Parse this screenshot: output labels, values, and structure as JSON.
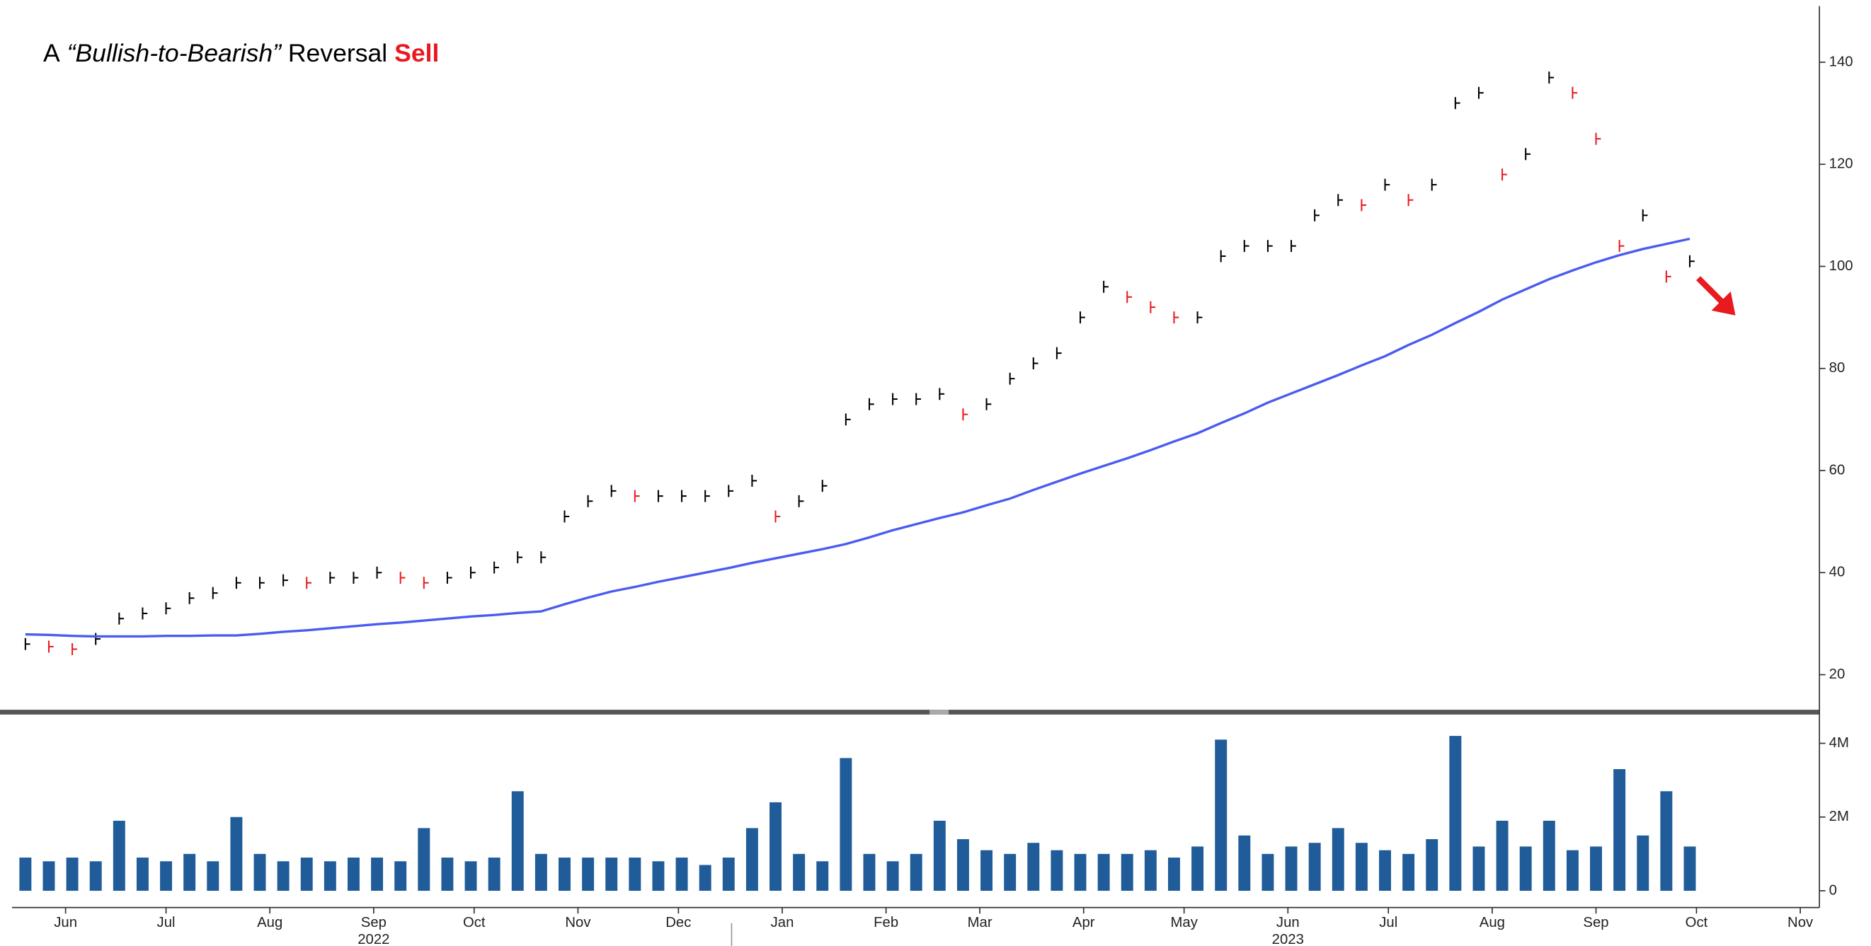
{
  "chart_data": [
    {
      "type": "ohlc_line",
      "title": {
        "prefix": "A",
        "quoted": "“Bullish-to-Bearish”",
        "middle": "Reversal",
        "emphasis": "Sell"
      },
      "emphasis_color": "#e8191f",
      "x": [
        "2022-06-03",
        "2022-06-10",
        "2022-06-17",
        "2022-06-24",
        "2022-07-01",
        "2022-07-08",
        "2022-07-15",
        "2022-07-22",
        "2022-07-29",
        "2022-08-05",
        "2022-08-12",
        "2022-08-19",
        "2022-08-26",
        "2022-09-02",
        "2022-09-09",
        "2022-09-16",
        "2022-09-23",
        "2022-09-30",
        "2022-10-07",
        "2022-10-14",
        "2022-10-21",
        "2022-10-28",
        "2022-11-04",
        "2022-11-11",
        "2022-11-18",
        "2022-11-25",
        "2022-12-02",
        "2022-12-09",
        "2022-12-16",
        "2022-12-23",
        "2022-12-30",
        "2023-01-06",
        "2023-01-13",
        "2023-01-20",
        "2023-01-27",
        "2023-02-03",
        "2023-02-10",
        "2023-02-17",
        "2023-02-24",
        "2023-03-03",
        "2023-03-10",
        "2023-03-17",
        "2023-03-24",
        "2023-03-31",
        "2023-04-07",
        "2023-04-14",
        "2023-04-21",
        "2023-04-28",
        "2023-05-05",
        "2023-05-12",
        "2023-05-19",
        "2023-05-26",
        "2023-06-02",
        "2023-06-09",
        "2023-06-16",
        "2023-06-23",
        "2023-06-30",
        "2023-07-07",
        "2023-07-14",
        "2023-07-21",
        "2023-07-28",
        "2023-08-04",
        "2023-08-11",
        "2023-08-18",
        "2023-08-25",
        "2023-09-01",
        "2023-09-08",
        "2023-09-15",
        "2023-09-22",
        "2023-09-29",
        "2023-10-06",
        "2023-10-13"
      ],
      "series": [
        {
          "color": "#000000",
          "down_color": "#e8191f",
          "style": "bars",
          "values": [
            26,
            25.5,
            25,
            27,
            31,
            32,
            33,
            35,
            36,
            38,
            38,
            38.5,
            38,
            39,
            39,
            40,
            39,
            38,
            39,
            40,
            41,
            43,
            43,
            51,
            54,
            56,
            55,
            55,
            55,
            55,
            56,
            58,
            51,
            54,
            57,
            70,
            73,
            74,
            74,
            75,
            71,
            73,
            78,
            81,
            83,
            90,
            96,
            94,
            92,
            90,
            90,
            102,
            104,
            104,
            104,
            110,
            113,
            112,
            116,
            113,
            116,
            132,
            134,
            118,
            122,
            137,
            134,
            125,
            104,
            110,
            98,
            101
          ]
        },
        {
          "color": "#4a5cf0",
          "style": "line",
          "values": [
            27.9,
            27.8,
            27.6,
            27.5,
            27.5,
            27.5,
            27.6,
            27.6,
            27.7,
            27.7,
            28,
            28.4,
            28.7,
            29.1,
            29.5,
            29.9,
            30.2,
            30.6,
            31,
            31.4,
            31.7,
            32.1,
            32.4,
            33.8,
            35.1,
            36.3,
            37.2,
            38.2,
            39.1,
            40,
            40.9,
            41.9,
            42.8,
            43.7,
            44.6,
            45.6,
            46.9,
            48.3,
            49.5,
            50.7,
            51.8,
            53.2,
            54.5,
            56.2,
            57.8,
            59.4,
            60.9,
            62.4,
            64,
            65.7,
            67.3,
            69.3,
            71.2,
            73.3,
            75.1,
            76.9,
            78.7,
            80.6,
            82.4,
            84.6,
            86.6,
            88.9,
            91.1,
            93.5,
            95.5,
            97.5,
            99.2,
            100.8,
            102.2,
            103.4,
            104.4,
            105.4
          ]
        }
      ],
      "xlim": [
        "2022-05-30",
        "2023-11-20"
      ],
      "ylim": [
        13.6,
        151
      ],
      "yticks": [
        20,
        40,
        60,
        80,
        100,
        120,
        140
      ]
    },
    {
      "type": "bar",
      "x": [
        "2022-06-03",
        "2022-06-10",
        "2022-06-17",
        "2022-06-24",
        "2022-07-01",
        "2022-07-08",
        "2022-07-15",
        "2022-07-22",
        "2022-07-29",
        "2022-08-05",
        "2022-08-12",
        "2022-08-19",
        "2022-08-26",
        "2022-09-02",
        "2022-09-09",
        "2022-09-16",
        "2022-09-23",
        "2022-09-30",
        "2022-10-07",
        "2022-10-14",
        "2022-10-21",
        "2022-10-28",
        "2022-11-04",
        "2022-11-11",
        "2022-11-18",
        "2022-11-25",
        "2022-12-02",
        "2022-12-09",
        "2022-12-16",
        "2022-12-23",
        "2022-12-30",
        "2023-01-06",
        "2023-01-13",
        "2023-01-20",
        "2023-01-27",
        "2023-02-03",
        "2023-02-10",
        "2023-02-17",
        "2023-02-24",
        "2023-03-03",
        "2023-03-10",
        "2023-03-17",
        "2023-03-24",
        "2023-03-31",
        "2023-04-07",
        "2023-04-14",
        "2023-04-21",
        "2023-04-28",
        "2023-05-05",
        "2023-05-12",
        "2023-05-19",
        "2023-05-26",
        "2023-06-02",
        "2023-06-09",
        "2023-06-16",
        "2023-06-23",
        "2023-06-30",
        "2023-07-07",
        "2023-07-14",
        "2023-07-21",
        "2023-07-28",
        "2023-08-04",
        "2023-08-11",
        "2023-08-18",
        "2023-08-25",
        "2023-09-01",
        "2023-09-08",
        "2023-09-15",
        "2023-09-22",
        "2023-09-29",
        "2023-10-06",
        "2023-10-13"
      ],
      "color": "#1f5c99",
      "values": [
        0.9,
        0.8,
        0.9,
        0.8,
        1.9,
        0.9,
        0.8,
        1,
        0.8,
        2,
        1,
        0.8,
        0.9,
        0.8,
        0.9,
        0.9,
        0.8,
        1.7,
        0.9,
        0.8,
        0.9,
        2.7,
        1,
        0.9,
        0.9,
        0.9,
        0.9,
        0.8,
        0.9,
        0.7,
        0.9,
        1.7,
        2.4,
        1,
        0.8,
        3.6,
        1,
        0.8,
        1,
        1.9,
        1.4,
        1.1,
        1,
        1.3,
        1.1,
        1,
        1,
        1,
        1.1,
        0.9,
        1.2,
        4.1,
        1.5,
        1,
        1.2,
        1.3,
        1.7,
        1.3,
        1.1,
        1,
        1.4,
        4.2,
        1.2,
        1.9,
        1.2,
        1.9,
        1.1,
        1.2,
        3.3,
        1.5,
        2.7,
        1.2
      ],
      "xlim": [
        "2022-05-30",
        "2023-11-20"
      ],
      "ylim": [
        -0.39,
        4.65
      ],
      "yticks": [
        0,
        {
          "value": 2,
          "label": "2M"
        },
        {
          "value": 4,
          "label": "4M"
        }
      ],
      "xticks": [
        {
          "value": "2022-06-15",
          "label": "Jun"
        },
        {
          "value": "2022-07-15",
          "label": "Jul"
        },
        {
          "value": "2022-08-15",
          "label": "Aug"
        },
        {
          "value": "2022-09-15",
          "label": "Sep"
        },
        {
          "value": "2022-10-15",
          "label": "Oct"
        },
        {
          "value": "2022-11-15",
          "label": "Nov"
        },
        {
          "value": "2022-12-15",
          "label": "Dec"
        },
        {
          "value": "2023-01-15",
          "label": "Jan"
        },
        {
          "value": "2023-02-15",
          "label": "Feb"
        },
        {
          "value": "2023-03-15",
          "label": "Mar"
        },
        {
          "value": "2023-04-15",
          "label": "Apr"
        },
        {
          "value": "2023-05-15",
          "label": "May"
        },
        {
          "value": "2023-06-15",
          "label": "Jun"
        },
        {
          "value": "2023-07-15",
          "label": "Jul"
        },
        {
          "value": "2023-08-15",
          "label": "Aug"
        },
        {
          "value": "2023-09-15",
          "label": "Sep"
        },
        {
          "value": "2023-10-15",
          "label": "Oct"
        },
        {
          "value": "2023-11-15",
          "label": "Nov"
        }
      ],
      "year_labels": [
        {
          "value": "2022-09-15",
          "label": "2022"
        },
        {
          "value": "2023-06-15",
          "label": "2023"
        }
      ]
    }
  ]
}
